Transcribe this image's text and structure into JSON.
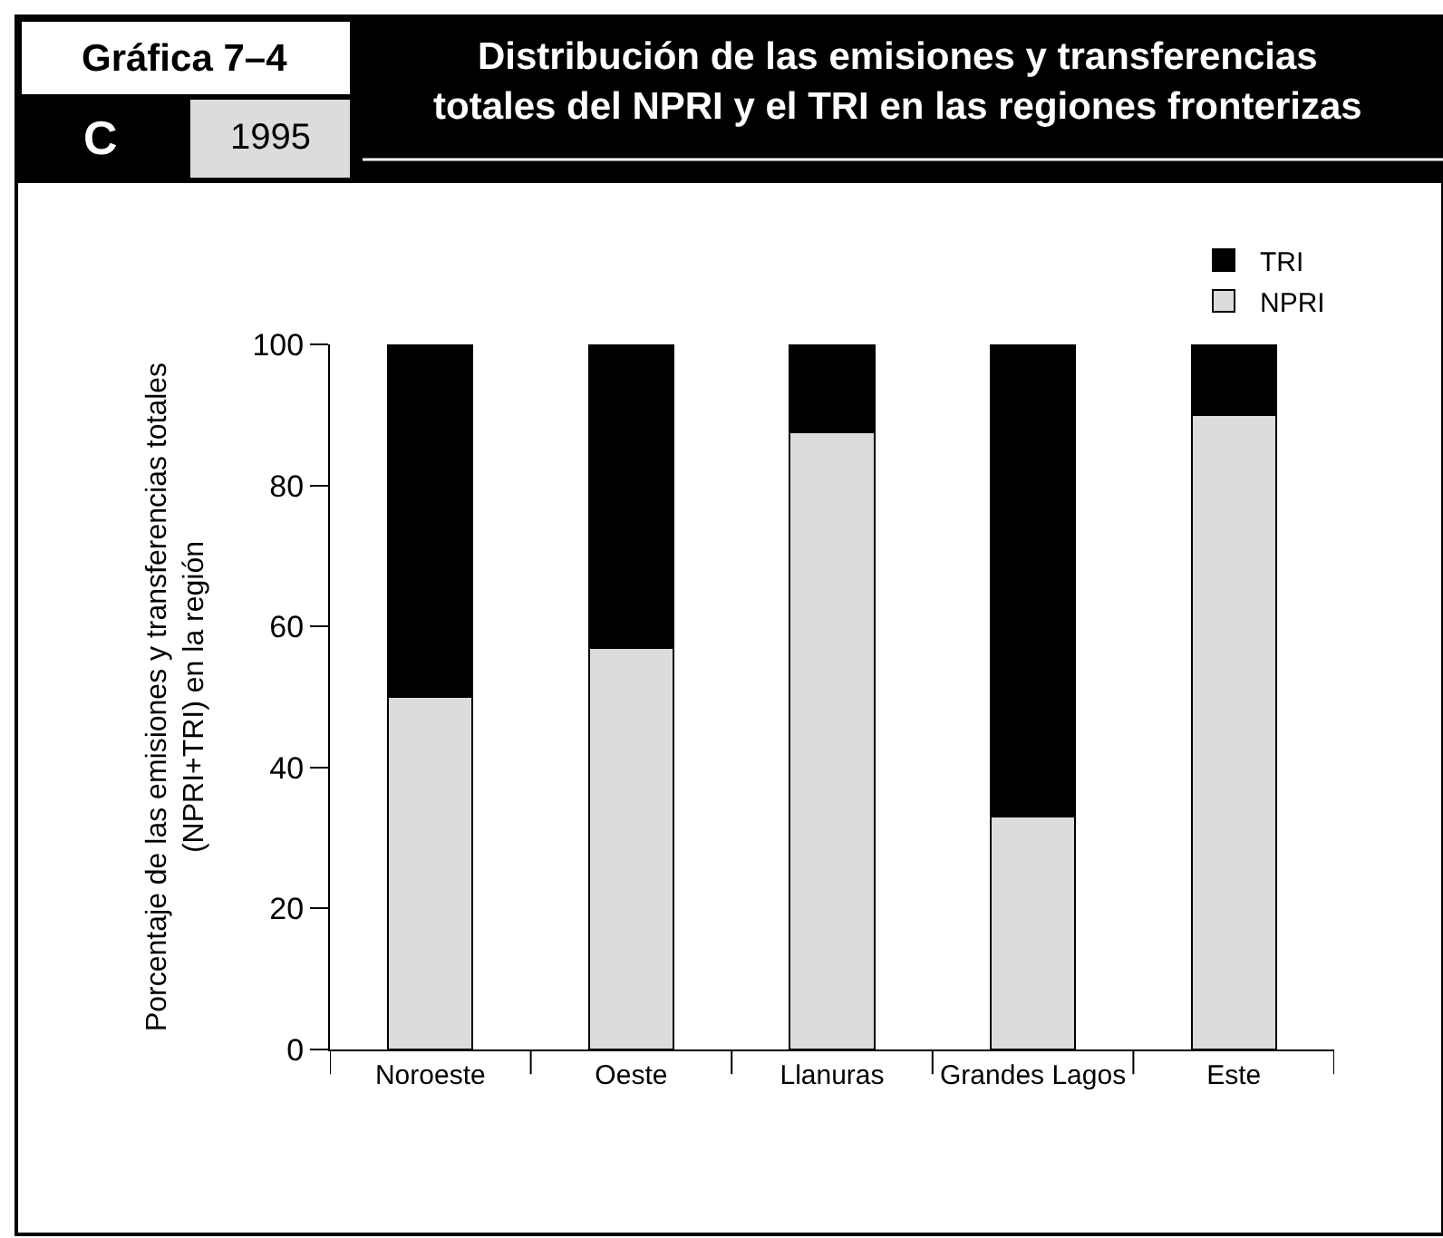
{
  "chart_data": {
    "type": "bar",
    "stacked": true,
    "title": "Distribución de las emisiones y transferencias\ntotales del NPRI y el TRI en las regiones fronterizas",
    "ylabel": "Porcentaje de las emisiones y transferencias totales\n(NPRI+TRI) en la región",
    "categories": [
      "Noroeste",
      "Oeste",
      "Llanuras",
      "Grandes Lagos",
      "Este"
    ],
    "series": [
      {
        "name": "NPRI",
        "color": "#dcdcdc",
        "values": [
          50,
          57,
          87.5,
          33,
          90
        ]
      },
      {
        "name": "TRI",
        "color": "#000000",
        "values": [
          50,
          43,
          12.5,
          67,
          10
        ]
      }
    ],
    "ylim": [
      0,
      100
    ],
    "yticks": [
      0,
      20,
      40,
      60,
      80,
      100
    ],
    "legend": "top right",
    "annotations": [
      "Gráfica 7–4",
      "C",
      "1995"
    ]
  }
}
